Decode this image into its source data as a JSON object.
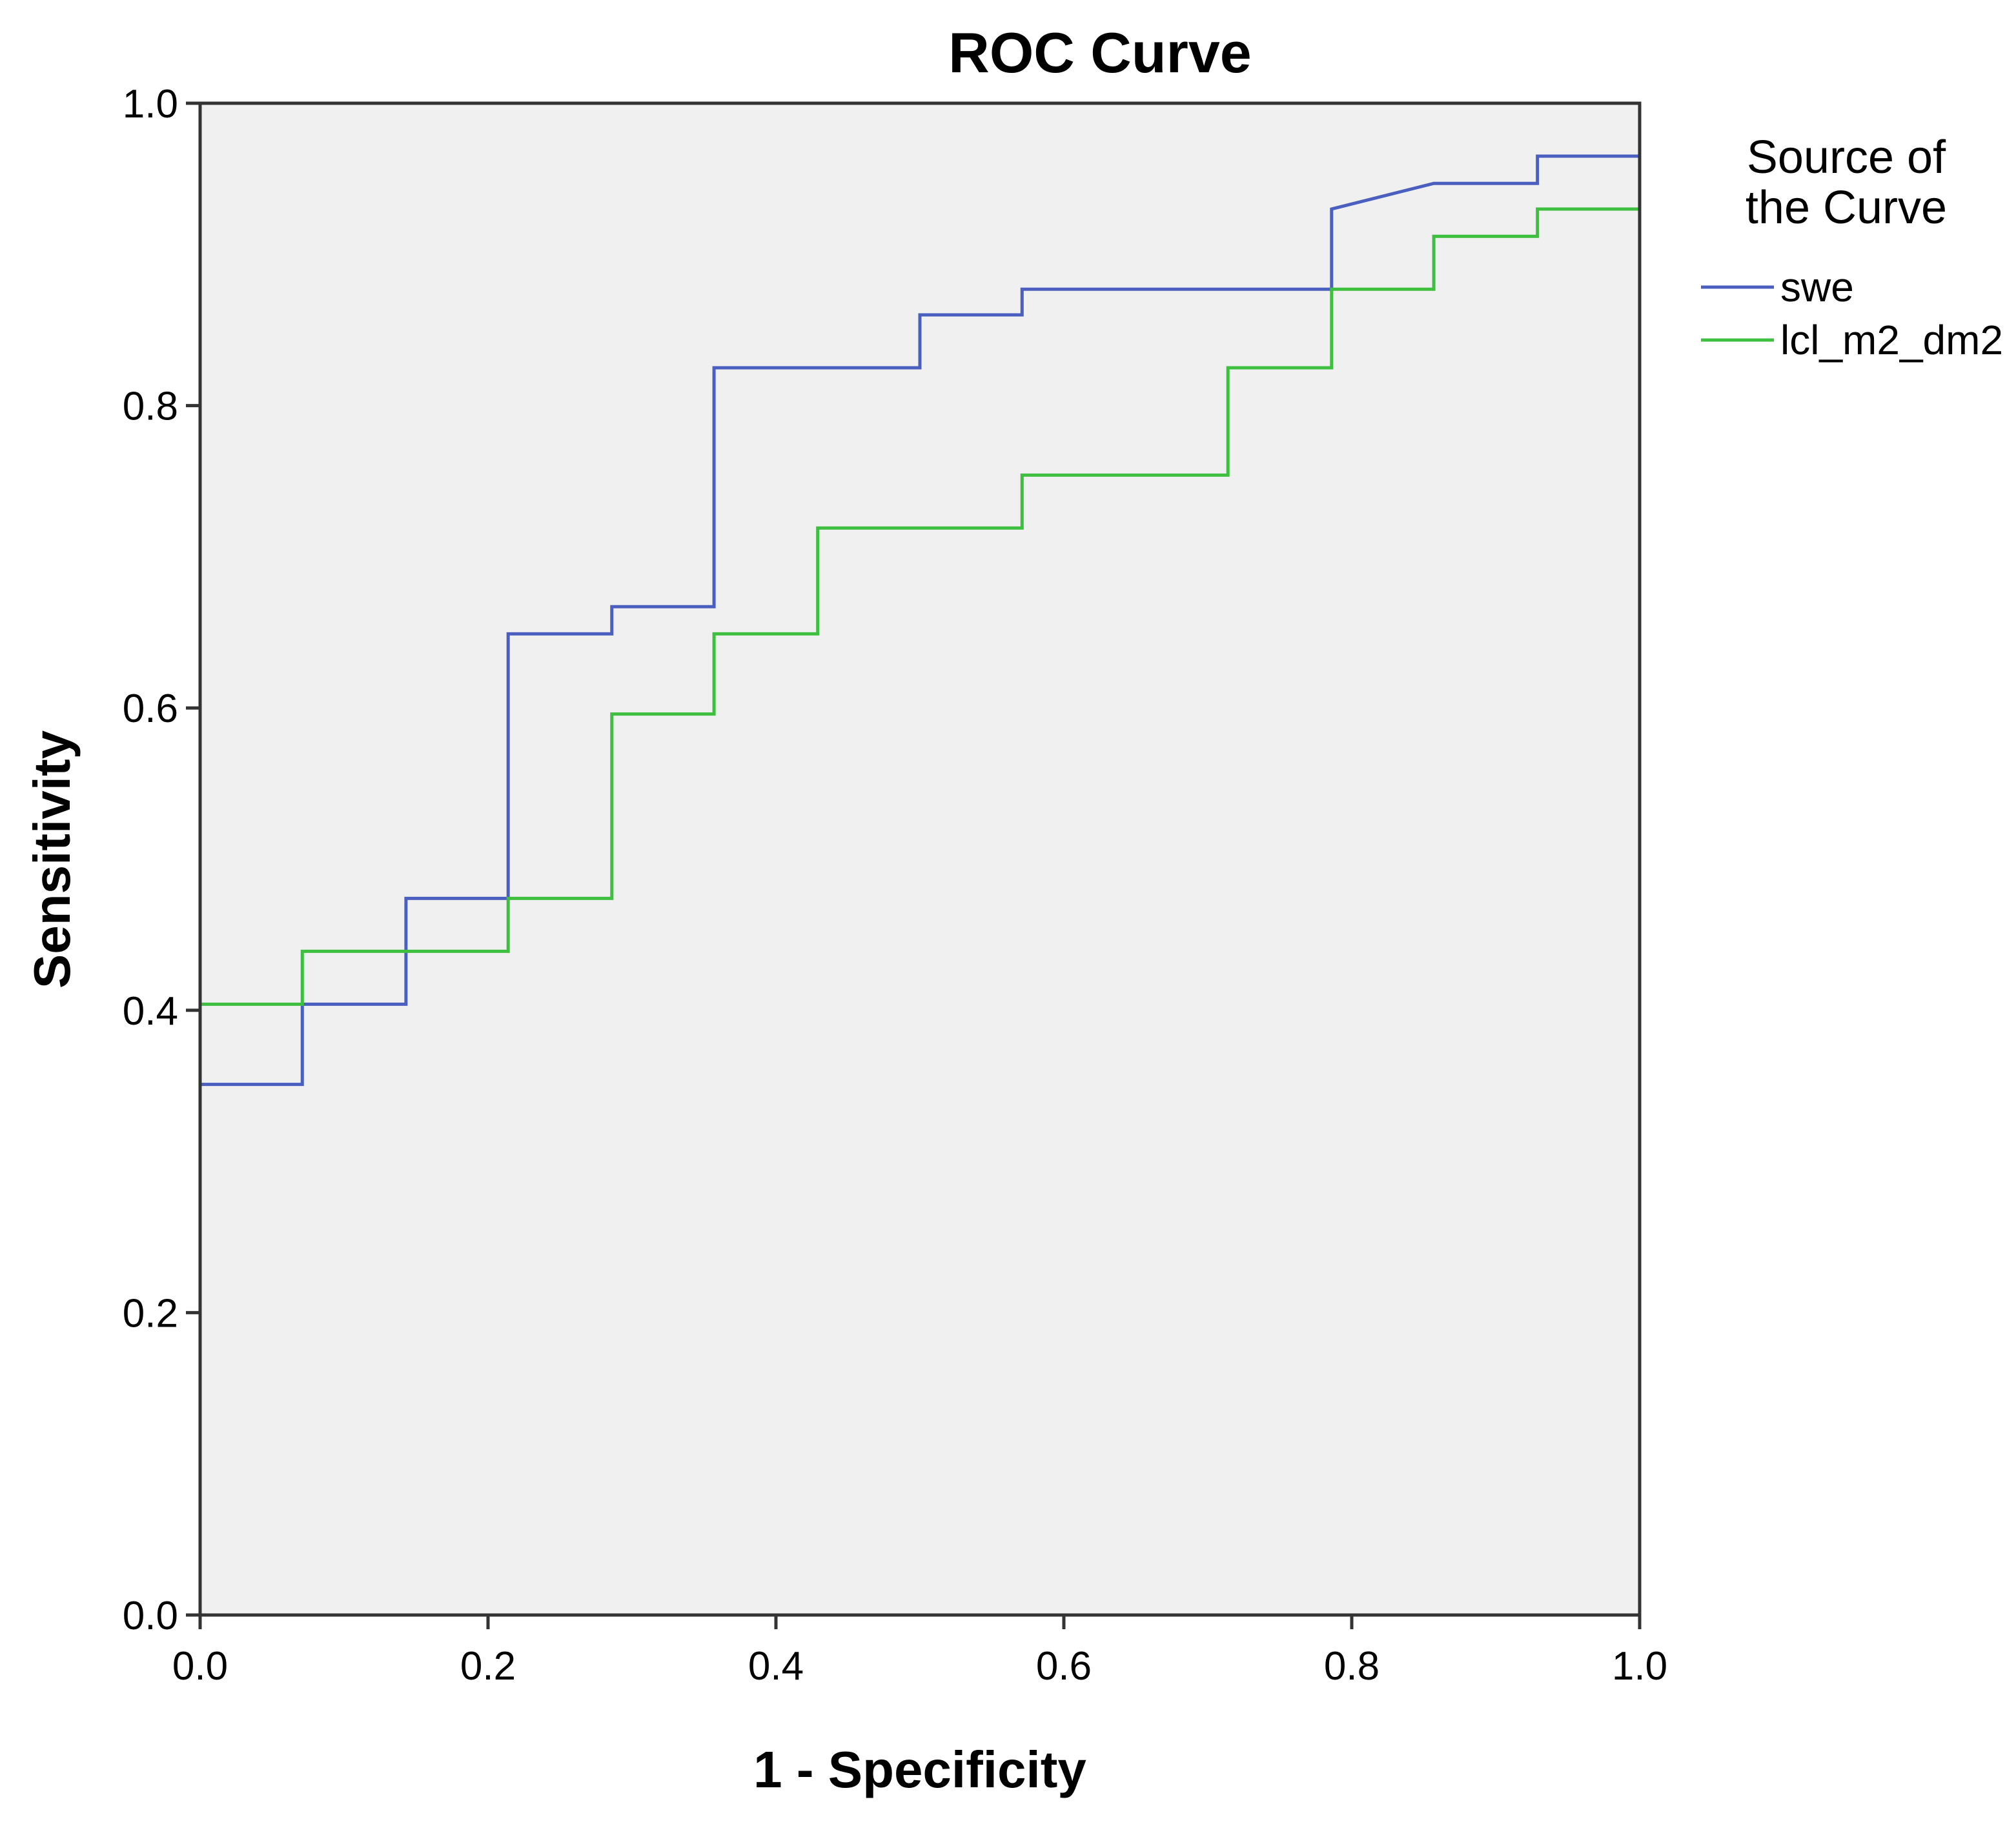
{
  "chart_data": {
    "type": "line",
    "title": "ROC Curve",
    "xlabel": "1 - Specificity",
    "ylabel": "Sensitivity",
    "xlim": [
      0,
      1
    ],
    "ylim": [
      0,
      1
    ],
    "x_ticks": [
      "0.0",
      "0.2",
      "0.4",
      "0.6",
      "0.8",
      "1.0"
    ],
    "y_ticks": [
      "0.0",
      "0.2",
      "0.4",
      "0.6",
      "0.8",
      "1.0"
    ],
    "grid": false,
    "legend_title_lines": [
      "Source of",
      "the Curve"
    ],
    "legend_position": "right",
    "colors": {
      "plot_background": "#f0f0f0",
      "axis": "#333333"
    },
    "series": [
      {
        "name": "swe",
        "color": "#4a5fbf",
        "points": [
          [
            0.0,
            0.0
          ],
          [
            0.0,
            0.351
          ],
          [
            0.071,
            0.351
          ],
          [
            0.071,
            0.404
          ],
          [
            0.143,
            0.404
          ],
          [
            0.143,
            0.474
          ],
          [
            0.214,
            0.474
          ],
          [
            0.214,
            0.649
          ],
          [
            0.286,
            0.649
          ],
          [
            0.286,
            0.667
          ],
          [
            0.357,
            0.667
          ],
          [
            0.357,
            0.825
          ],
          [
            0.5,
            0.825
          ],
          [
            0.5,
            0.86
          ],
          [
            0.571,
            0.86
          ],
          [
            0.571,
            0.877
          ],
          [
            0.786,
            0.877
          ],
          [
            0.786,
            0.93
          ],
          [
            0.857,
            0.947
          ],
          [
            0.929,
            0.947
          ],
          [
            0.929,
            0.965
          ],
          [
            1.0,
            0.965
          ],
          [
            1.0,
            1.0
          ]
        ]
      },
      {
        "name": "lcl_m2_dm2",
        "color": "#3fbf3f",
        "points": [
          [
            0.0,
            0.0
          ],
          [
            0.0,
            0.404
          ],
          [
            0.071,
            0.404
          ],
          [
            0.071,
            0.439
          ],
          [
            0.214,
            0.439
          ],
          [
            0.214,
            0.474
          ],
          [
            0.286,
            0.474
          ],
          [
            0.286,
            0.596
          ],
          [
            0.357,
            0.596
          ],
          [
            0.357,
            0.649
          ],
          [
            0.429,
            0.649
          ],
          [
            0.429,
            0.719
          ],
          [
            0.571,
            0.719
          ],
          [
            0.571,
            0.754
          ],
          [
            0.714,
            0.754
          ],
          [
            0.714,
            0.825
          ],
          [
            0.786,
            0.825
          ],
          [
            0.786,
            0.877
          ],
          [
            0.857,
            0.877
          ],
          [
            0.857,
            0.912
          ],
          [
            0.929,
            0.912
          ],
          [
            0.929,
            0.93
          ],
          [
            1.0,
            0.93
          ],
          [
            1.0,
            1.0
          ]
        ]
      }
    ]
  }
}
